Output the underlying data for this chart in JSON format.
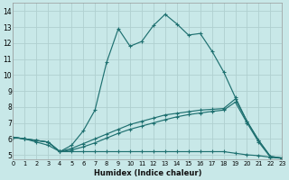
{
  "xlabel": "Humidex (Indice chaleur)",
  "background_color": "#c8e8e8",
  "grid_color": "#b0d0d0",
  "line_color": "#1e7070",
  "xlim": [
    0,
    23
  ],
  "ylim": [
    4.7,
    14.5
  ],
  "yticks": [
    5,
    6,
    7,
    8,
    9,
    10,
    11,
    12,
    13,
    14
  ],
  "xtick_labels": [
    "0",
    "1",
    "2",
    "3",
    "4",
    "5",
    "6",
    "7",
    "8",
    "9",
    "10",
    "11",
    "12",
    "13",
    "14",
    "15",
    "16",
    "17",
    "18",
    "19",
    "20",
    "21",
    "22",
    "23"
  ],
  "curve1_x": [
    0,
    1,
    2,
    3,
    4,
    5,
    6,
    7,
    8,
    9,
    10,
    11,
    12,
    13,
    14,
    15,
    16,
    17,
    18,
    19,
    20,
    21,
    22,
    23
  ],
  "curve1_y": [
    6.1,
    6.0,
    5.9,
    5.8,
    5.2,
    5.6,
    6.5,
    7.8,
    10.8,
    12.9,
    11.8,
    12.1,
    13.1,
    13.8,
    13.2,
    12.5,
    12.6,
    11.5,
    10.2,
    8.6,
    7.1,
    5.9,
    4.9,
    4.8
  ],
  "curve2_x": [
    0,
    1,
    2,
    3,
    4,
    5,
    6,
    7,
    8,
    9,
    10,
    11,
    12,
    13,
    14,
    15,
    16,
    17,
    18,
    19,
    20,
    21,
    22,
    23
  ],
  "curve2_y": [
    6.1,
    6.0,
    5.8,
    5.6,
    5.2,
    5.2,
    5.2,
    5.2,
    5.2,
    5.2,
    5.2,
    5.2,
    5.2,
    5.2,
    5.2,
    5.2,
    5.2,
    5.2,
    5.2,
    5.1,
    5.0,
    4.95,
    4.85,
    4.8
  ],
  "curve3_x": [
    0,
    1,
    2,
    3,
    4,
    5,
    6,
    7,
    8,
    9,
    10,
    11,
    12,
    13,
    14,
    15,
    16,
    17,
    18,
    19,
    20,
    21,
    22,
    23
  ],
  "curve3_y": [
    6.1,
    6.0,
    5.9,
    5.8,
    5.2,
    5.4,
    5.7,
    6.0,
    6.3,
    6.6,
    6.9,
    7.1,
    7.3,
    7.5,
    7.6,
    7.7,
    7.8,
    7.85,
    7.9,
    8.5,
    7.1,
    5.9,
    4.9,
    4.8
  ],
  "curve4_x": [
    0,
    1,
    2,
    3,
    4,
    5,
    6,
    7,
    8,
    9,
    10,
    11,
    12,
    13,
    14,
    15,
    16,
    17,
    18,
    19,
    20,
    21,
    22,
    23
  ],
  "curve4_y": [
    6.1,
    6.0,
    5.9,
    5.8,
    5.2,
    5.3,
    5.5,
    5.75,
    6.05,
    6.35,
    6.6,
    6.8,
    7.0,
    7.2,
    7.38,
    7.52,
    7.62,
    7.72,
    7.8,
    8.3,
    7.0,
    5.8,
    4.85,
    4.78
  ]
}
